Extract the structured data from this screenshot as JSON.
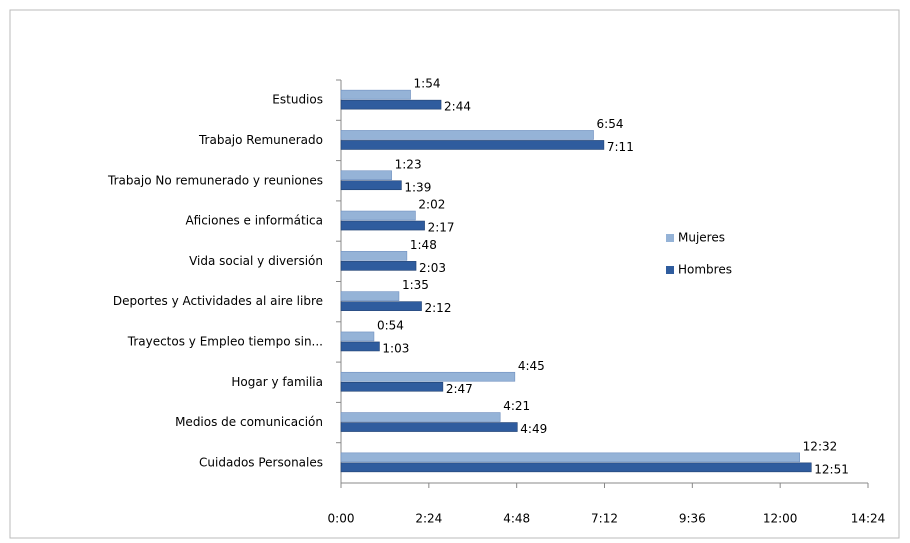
{
  "chart_data": {
    "type": "bar",
    "orientation": "horizontal",
    "categories": [
      "Estudios",
      "Trabajo Remunerado",
      "Trabajo  No remunerado y reuniones",
      "Aficiones e informática",
      "Vida social y diversión",
      "Deportes y Actividades al aire libre",
      "Trayectos y Empleo tiempo sin...",
      "Hogar y familia",
      "Medios de comunicación",
      "Cuidados Personales"
    ],
    "series": [
      {
        "name": "Mujeres",
        "color": "#95b3d7",
        "values": [
          114,
          414,
          83,
          122,
          108,
          95,
          54,
          285,
          261,
          752
        ],
        "value_labels": [
          "1:54",
          "6:54",
          "1:23",
          "2:02",
          "1:48",
          "1:35",
          "0:54",
          "4:45",
          "4:21",
          "12:32"
        ]
      },
      {
        "name": "Hombres",
        "color": "#2f5c9e",
        "values": [
          164,
          431,
          99,
          137,
          123,
          132,
          63,
          167,
          289,
          771
        ],
        "value_labels": [
          "2:44",
          "7:11",
          "1:39",
          "2:17",
          "2:03",
          "2:12",
          "1:03",
          "2:47",
          "4:49",
          "12:51"
        ]
      }
    ],
    "xlim": [
      0,
      864
    ],
    "xticks": [
      {
        "value": 0,
        "label": "0:00"
      },
      {
        "value": 144,
        "label": "2:24"
      },
      {
        "value": 288,
        "label": "4:48"
      },
      {
        "value": 432,
        "label": "7:12"
      },
      {
        "value": 576,
        "label": "9:36"
      },
      {
        "value": 720,
        "label": "12:00"
      },
      {
        "value": 864,
        "label": "14:24"
      }
    ],
    "legend": "right"
  }
}
